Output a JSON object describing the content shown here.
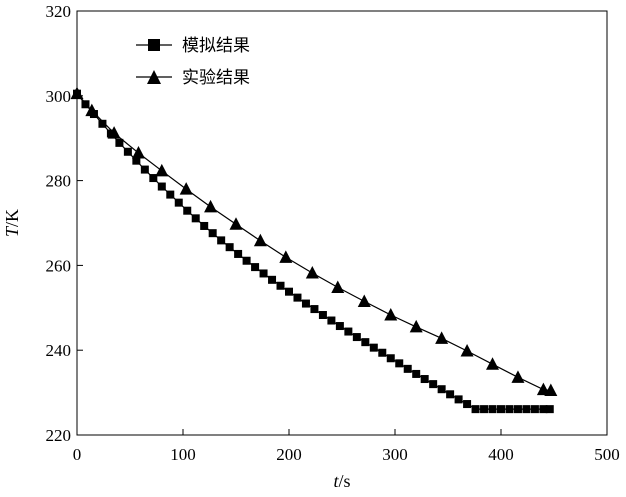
{
  "chart_data": {
    "type": "line",
    "xlabel": "t/s",
    "ylabel": "T/K",
    "xlim": [
      0,
      500
    ],
    "ylim": [
      220,
      320
    ],
    "x_ticks": [
      0,
      100,
      200,
      300,
      400,
      500
    ],
    "y_ticks": [
      220,
      240,
      260,
      280,
      300,
      320
    ],
    "grid": false,
    "legend_position": "top-left",
    "series": [
      {
        "name": "模拟结果",
        "marker": "square",
        "color": "#000000",
        "x": [
          0,
          8,
          16,
          24,
          32,
          40,
          48,
          56,
          64,
          72,
          80,
          88,
          96,
          104,
          112,
          120,
          128,
          136,
          144,
          152,
          160,
          168,
          176,
          184,
          192,
          200,
          208,
          216,
          224,
          232,
          240,
          248,
          256,
          264,
          272,
          280,
          288,
          296,
          304,
          312,
          320,
          328,
          336,
          344,
          352,
          360,
          368,
          376,
          384,
          392,
          400,
          408,
          416,
          424,
          432,
          440,
          446
        ],
        "y": [
          300.5,
          298.0,
          295.7,
          293.4,
          291.1,
          288.9,
          286.8,
          284.7,
          282.6,
          280.6,
          278.6,
          276.7,
          274.8,
          272.9,
          271.1,
          269.3,
          267.6,
          265.9,
          264.3,
          262.7,
          261.1,
          259.6,
          258.1,
          256.6,
          255.2,
          253.8,
          252.4,
          251.0,
          249.7,
          248.3,
          247.0,
          245.7,
          244.4,
          243.1,
          241.9,
          240.6,
          239.4,
          238.1,
          236.9,
          235.6,
          234.4,
          233.2,
          232.0,
          230.8,
          229.6,
          228.4,
          227.3,
          226.1,
          226.1,
          226.1,
          226.1,
          226.1,
          226.1,
          226.1,
          226.1,
          226.1,
          226.1
        ]
      },
      {
        "name": "实验结果",
        "marker": "triangle",
        "color": "#000000",
        "x": [
          0,
          14,
          35,
          58,
          80,
          103,
          126,
          150,
          173,
          197,
          222,
          246,
          271,
          296,
          320,
          344,
          368,
          392,
          416,
          440,
          447
        ],
        "y": [
          300.5,
          296.5,
          291.2,
          286.5,
          282.3,
          278.0,
          273.8,
          269.7,
          265.8,
          261.9,
          258.2,
          254.8,
          251.5,
          248.3,
          245.5,
          242.8,
          239.8,
          236.7,
          233.6,
          230.7,
          230.5
        ]
      }
    ]
  }
}
